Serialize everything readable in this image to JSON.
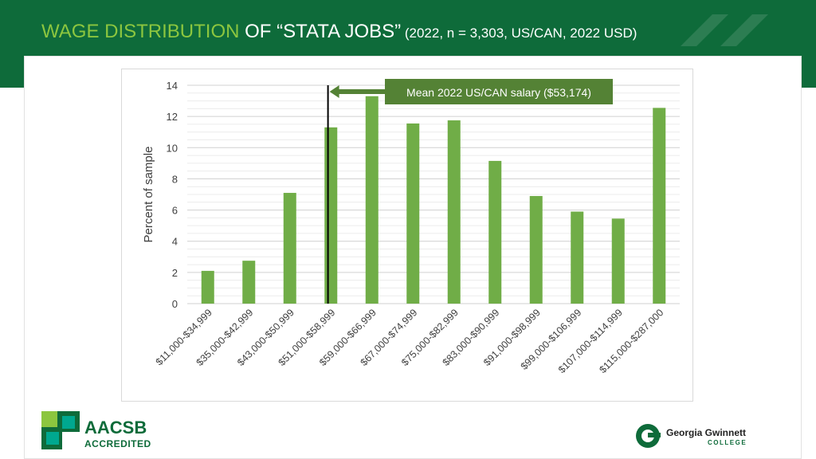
{
  "slide": {
    "title_part1": "WAGE DISTRIBUTION",
    "title_part2": " OF “STATA JOBS”",
    "title_part3": " (2022, n = 3,303, US/CAN, 2022 USD)",
    "colors": {
      "header": "#0e6b3a",
      "accent_green": "#8cc63f",
      "bar": "#70ad47",
      "callout": "#548235"
    }
  },
  "logos": {
    "aacsb_text": "AACSB",
    "aacsb_sub": "ACCREDITED",
    "ggc_name": "Georgia Gwinnett",
    "ggc_college": "COLLEGE"
  },
  "chart_data": {
    "type": "bar",
    "title": "",
    "xlabel": "",
    "ylabel": "Percent of sample",
    "ylim": [
      0,
      14
    ],
    "yticks": [
      0,
      2,
      4,
      6,
      8,
      10,
      12,
      14
    ],
    "grid": true,
    "categories": [
      "$11,000-$34,999",
      "$35,000-$42,999",
      "$43,000-$50,999",
      "$51,000-$58,999",
      "$59,000-$66,999",
      "$67,000-$74,999",
      "$75,000-$82,999",
      "$83,000-$90,999",
      "$91,000-$98,999",
      "$99,000-$106,999",
      "$107,000-$114,999",
      "$115,000-$287,000"
    ],
    "values": [
      2.1,
      2.75,
      7.1,
      11.3,
      13.3,
      11.55,
      11.75,
      9.15,
      6.9,
      5.9,
      5.45,
      12.55
    ],
    "annotation": {
      "text": "Mean 2022 US/CAN salary ($53,174)",
      "x_value": 53174
    }
  }
}
